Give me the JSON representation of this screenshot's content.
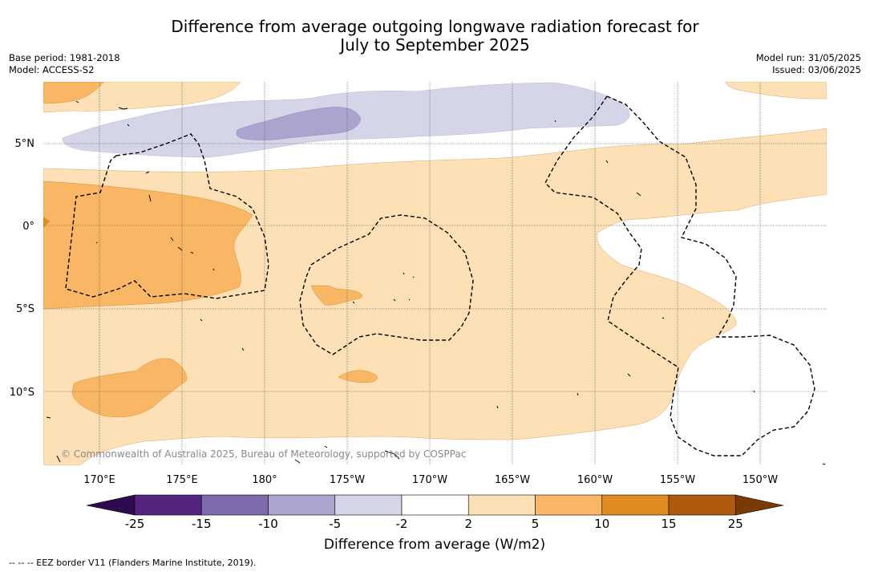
{
  "title_line1": "Difference from average outgoing longwave radiation forecast for",
  "title_line2": "July to September 2025",
  "base_period": "Base period: 1981-2018",
  "model": "Model: ACCESS-S2",
  "model_run": "Model run: 31/05/2025",
  "issued": "Issued: 03/06/2025",
  "copyright": "© Commonwealth of Australia 2025, Bureau of Meteorology, supported by COSPPac",
  "lon_ticks": [
    "170°E",
    "175°E",
    "180°",
    "175°W",
    "170°W",
    "165°W",
    "160°W",
    "155°W",
    "150°W"
  ],
  "lat_ticks": [
    "5°N",
    "0°",
    "5°S",
    "10°S"
  ],
  "colorbar_ticks": [
    "-25",
    "-15",
    "-10",
    "-5",
    "-2",
    "2",
    "5",
    "10",
    "15",
    "25"
  ],
  "colorbar_colors": [
    "#2e0a4e",
    "#54247f",
    "#7d6bab",
    "#aba4cf",
    "#d5d5e8",
    "#ffffff",
    "#fde0b6",
    "#f9b664",
    "#e08a1f",
    "#b05a0e",
    "#7a3a06"
  ],
  "colorbar_label": "Difference from average (W/m2)",
  "footnote": "--  --  -- EEZ border V11 (Flanders Marine Institute, 2019)."
}
